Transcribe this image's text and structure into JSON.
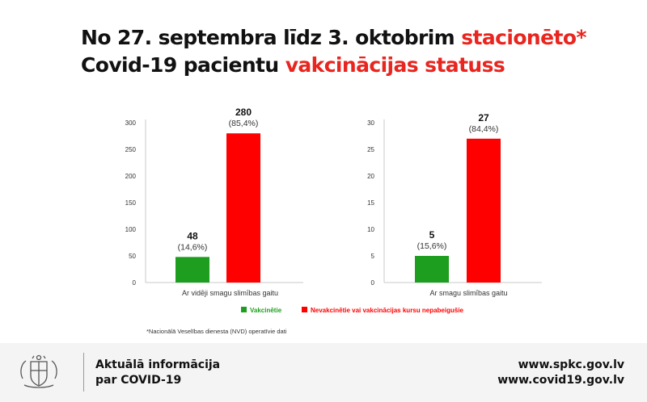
{
  "title": {
    "line1_prefix": "No 27. septembra līdz 3. oktobrim ",
    "line1_highlight": "stacionēto*",
    "line2_prefix": "Covid-19 pacientu ",
    "line2_highlight": "vakcinācijas statuss"
  },
  "colors": {
    "vaccinated": "#1e9e1e",
    "unvaccinated": "#ff0000",
    "accent": "#e8251f"
  },
  "chart_data": [
    {
      "type": "bar",
      "categories": [
        "Vakcinētie",
        "Nevakcinētie vai vakcinācijas kursu nepabeigušie"
      ],
      "values": [
        48,
        280
      ],
      "value_labels": [
        "48",
        "280"
      ],
      "percent_labels": [
        "(14,6%)",
        "(85,4%)"
      ],
      "xlabel": "Ar vidēji smagu slimības gaitu",
      "ylim": [
        0,
        300
      ],
      "yticks": [
        0,
        50,
        100,
        150,
        200,
        250,
        300
      ],
      "grid": false
    },
    {
      "type": "bar",
      "categories": [
        "Vakcinētie",
        "Nevakcinētie vai vakcinācijas kursu nepabeigušie"
      ],
      "values": [
        5,
        27
      ],
      "value_labels": [
        "5",
        "27"
      ],
      "percent_labels": [
        "(15,6%)",
        "(84,4%)"
      ],
      "xlabel": "Ar smagu slimības gaitu",
      "ylim": [
        0,
        30
      ],
      "yticks": [
        0,
        5,
        10,
        15,
        20,
        25,
        30
      ],
      "grid": false
    }
  ],
  "legend": {
    "placement": "bottom-center",
    "items": [
      {
        "label": "Vakcinētie",
        "color": "#1e9e1e"
      },
      {
        "label": "Nevakcinētie vai vakcinācijas kursu nepabeigušie",
        "color": "#ff0000"
      }
    ]
  },
  "footnote": "*Nacionālā Veselības dienesta (NVD) operatīvie dati",
  "footer": {
    "logo_icon": "latvia-coat-of-arms-icon",
    "info_line1": "Aktuālā informācija",
    "info_line2": "par COVID-19",
    "url1": "www.spkc.gov.lv",
    "url2": "www.covid19.gov.lv"
  }
}
